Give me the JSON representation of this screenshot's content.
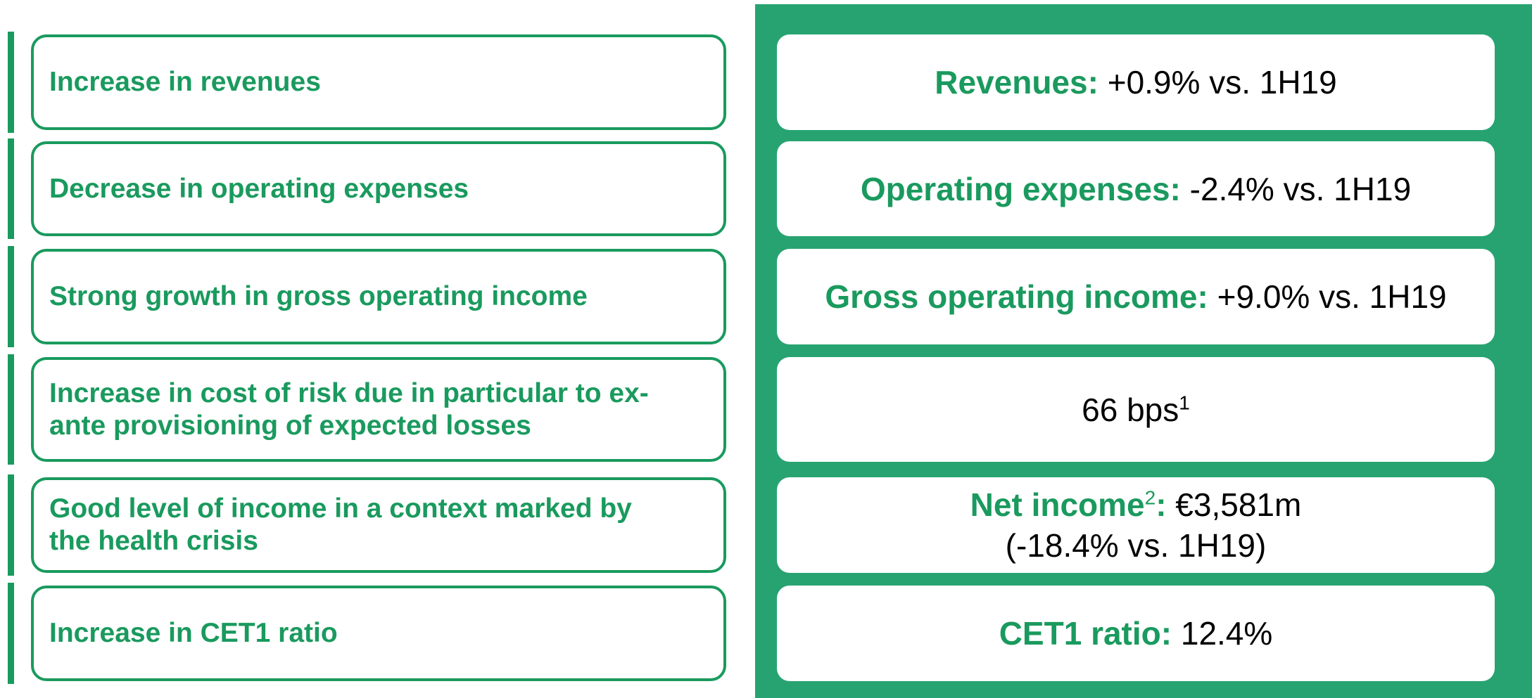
{
  "rows": [
    {
      "left": [
        "Increase in revenues"
      ],
      "right": [
        [
          {
            "text": "Revenues:",
            "kind": "label"
          },
          {
            "text": " +0.9% vs. 1H19",
            "kind": "value"
          }
        ]
      ]
    },
    {
      "left": [
        "Decrease in operating expenses"
      ],
      "right": [
        [
          {
            "text": "Operating expenses:",
            "kind": "label"
          },
          {
            "text": " -2.4% vs. 1H19",
            "kind": "value"
          }
        ]
      ]
    },
    {
      "left": [
        "Strong growth in gross operating income"
      ],
      "right": [
        [
          {
            "text": "Gross operating income:",
            "kind": "label"
          },
          {
            "text": " +9.0% vs. 1H19",
            "kind": "value"
          }
        ]
      ]
    },
    {
      "left": [
        "Increase in cost of risk due in particular to ex-",
        "ante provisioning of expected losses"
      ],
      "right": [
        [
          {
            "text": "66 bps",
            "kind": "value"
          },
          {
            "text": "1",
            "kind": "value-note"
          }
        ]
      ]
    },
    {
      "left": [
        "Good level of income in a context marked by",
        "the health crisis"
      ],
      "right": [
        [
          {
            "text": "Net income",
            "kind": "label"
          },
          {
            "text": "2",
            "kind": "label-note"
          },
          {
            "text": ":",
            "kind": "label"
          },
          {
            "text": " €3,581m",
            "kind": "value"
          }
        ],
        [
          {
            "text": "(-18.4% vs. 1H19)",
            "kind": "value"
          }
        ]
      ]
    },
    {
      "left": [
        "Increase in CET1 ratio"
      ],
      "right": [
        [
          {
            "text": "CET1 ratio:",
            "kind": "label"
          },
          {
            "text": " 12.4%",
            "kind": "value"
          }
        ]
      ]
    }
  ]
}
